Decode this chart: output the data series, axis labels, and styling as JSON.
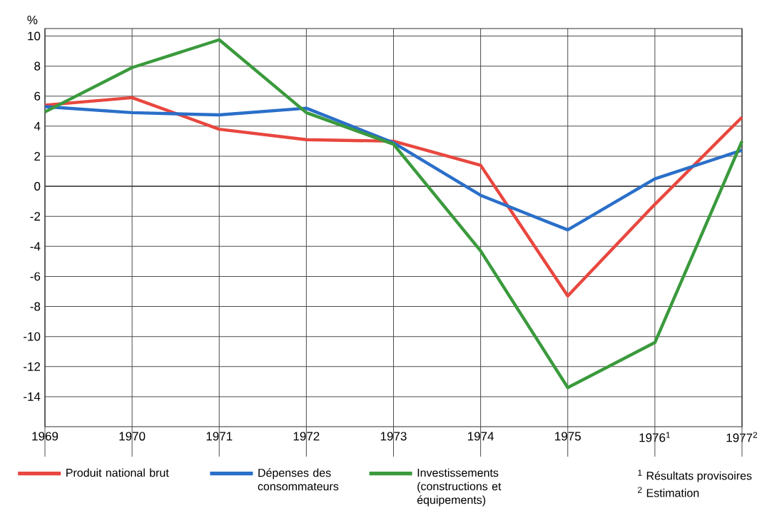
{
  "chart_data": {
    "type": "line",
    "ylabel": "%",
    "x": [
      1969,
      1970,
      1971,
      1972,
      1973,
      1974,
      1975,
      1976,
      1977
    ],
    "xlim": [
      1969,
      1977
    ],
    "xticks": [
      1969,
      1970,
      1971,
      1972,
      1973,
      1974,
      1975,
      {
        "value": 1976,
        "label": "1976$^{1}$"
      },
      {
        "value": 1977,
        "label": "1977$^{2}$"
      }
    ],
    "ylim": [
      -16,
      10.5
    ],
    "yticks": [
      -14,
      -12,
      -10,
      -8,
      -6,
      -4,
      -2,
      0,
      2,
      4,
      6,
      8,
      10
    ],
    "grid": true,
    "legend": "bottom",
    "marker": "none",
    "line_style": "solid",
    "series": [
      {
        "name": "Produit national brut",
        "color": "#e8473f",
        "values": [
          5.4,
          5.9,
          3.8,
          3.1,
          3.0,
          1.4,
          -7.3,
          -1.2,
          4.6
        ]
      },
      {
        "name": "Dépenses des consommateurs",
        "color": "#2a6fc9",
        "values": [
          5.3,
          4.9,
          4.75,
          5.2,
          2.9,
          -0.6,
          -2.9,
          0.5,
          2.4
        ]
      },
      {
        "name": "Investissements (constructions et équipements)",
        "color": "#3a9a3c",
        "values": [
          4.95,
          7.9,
          9.75,
          4.9,
          2.8,
          -4.3,
          -13.4,
          -10.4,
          3.0
        ]
      }
    ],
    "annotations": [
      "$^{1}$ Résultats provisoires",
      "$^{2}$ Estimation"
    ]
  }
}
